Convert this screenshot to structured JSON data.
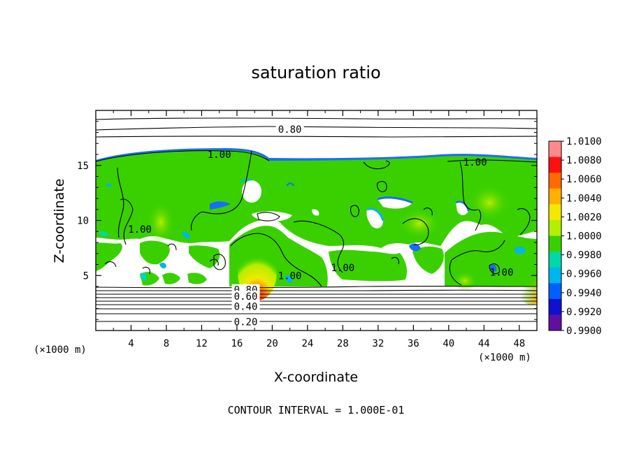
{
  "chart_data": {
    "type": "heatmap",
    "title": "saturation ratio",
    "xlabel": "X-coordinate",
    "ylabel": "Z-coordinate",
    "x_unit_label_left": "(×1000 m)",
    "x_unit_label_right": "(×1000 m)",
    "xlim": [
      0,
      50
    ],
    "ylim": [
      0,
      20
    ],
    "x_ticks": [
      4,
      8,
      12,
      16,
      20,
      24,
      28,
      32,
      36,
      40,
      44,
      48
    ],
    "y_ticks": [
      5,
      10,
      15
    ],
    "colorbar": {
      "ticks": [
        "1.0100",
        "1.0080",
        "1.0060",
        "1.0040",
        "1.0020",
        "1.0000",
        "0.9980",
        "0.9960",
        "0.9940",
        "0.9920",
        "0.9900"
      ],
      "colors": [
        "#ff8a8a",
        "#ff1010",
        "#ff6a00",
        "#ffb000",
        "#f2e800",
        "#b4ee00",
        "#3ad000",
        "#00d8a8",
        "#00b4ee",
        "#0060ff",
        "#1010d0",
        "#6010a0"
      ]
    },
    "contour_levels": [
      {
        "label": "0.80",
        "x": 22,
        "z": 18.3
      },
      {
        "label": "1.00",
        "x": 14,
        "z": 16.0
      },
      {
        "label": "1.00",
        "x": 43,
        "z": 15.3
      },
      {
        "label": "1.00",
        "x": 5,
        "z": 9.2
      },
      {
        "label": "1.00",
        "x": 22,
        "z": 5.0
      },
      {
        "label": "1.00",
        "x": 28,
        "z": 5.7
      },
      {
        "label": "1.00",
        "x": 46,
        "z": 5.3
      },
      {
        "label": "0.80",
        "x": 17,
        "z": 3.7
      },
      {
        "label": "0.60",
        "x": 17,
        "z": 3.1
      },
      {
        "label": "0.40",
        "x": 17,
        "z": 2.2
      },
      {
        "label": "0.20",
        "x": 17,
        "z": 0.8
      }
    ],
    "annotation": "CONTOUR INTERVAL = 1.000E-01"
  }
}
